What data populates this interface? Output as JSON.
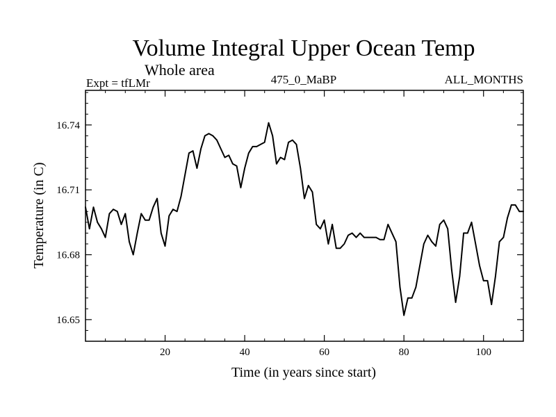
{
  "chart_data": {
    "type": "line",
    "title": "Volume Integral Upper Ocean Temp",
    "subtitle": "Whole area",
    "experiment_label": "Expt = tfLMr",
    "run_label": "475_0_MaBP",
    "season_label": "ALL_MONTHS",
    "xlabel": "Time (in years since start)",
    "ylabel": "Temperature (in C)",
    "xlim": [
      0,
      110
    ],
    "ylim": [
      16.64,
      16.756
    ],
    "xticks": [
      20,
      40,
      60,
      80,
      100
    ],
    "yticks": [
      16.65,
      16.68,
      16.71,
      16.74
    ],
    "xtick_labels": [
      "20",
      "40",
      "60",
      "80",
      "100"
    ],
    "ytick_labels": [
      "16.65",
      "16.68",
      "16.71",
      "16.74"
    ],
    "line_color": "#000000",
    "series": [
      {
        "name": "Volume Integral Upper Ocean Temp",
        "x": [
          0,
          1,
          2,
          3,
          4,
          5,
          6,
          7,
          8,
          9,
          10,
          11,
          12,
          13,
          14,
          15,
          16,
          17,
          18,
          19,
          20,
          21,
          22,
          23,
          24,
          25,
          26,
          27,
          28,
          29,
          30,
          31,
          32,
          33,
          34,
          35,
          36,
          37,
          38,
          39,
          40,
          41,
          42,
          43,
          44,
          45,
          46,
          47,
          48,
          49,
          50,
          51,
          52,
          53,
          54,
          55,
          56,
          57,
          58,
          59,
          60,
          61,
          62,
          63,
          64,
          65,
          66,
          67,
          68,
          69,
          70,
          71,
          72,
          73,
          74,
          75,
          76,
          77,
          78,
          79,
          80,
          81,
          82,
          83,
          84,
          85,
          86,
          87,
          88,
          89,
          90,
          91,
          92,
          93,
          94,
          95,
          96,
          97,
          98,
          99,
          100,
          101,
          102,
          103,
          104,
          105,
          106,
          107,
          108,
          109,
          110
        ],
        "values": [
          16.702,
          16.692,
          16.702,
          16.695,
          16.692,
          16.688,
          16.699,
          16.701,
          16.7,
          16.694,
          16.699,
          16.686,
          16.68,
          16.69,
          16.699,
          16.696,
          16.696,
          16.702,
          16.706,
          16.69,
          16.684,
          16.698,
          16.701,
          16.7,
          16.707,
          16.717,
          16.727,
          16.728,
          16.72,
          16.729,
          16.735,
          16.736,
          16.735,
          16.733,
          16.729,
          16.725,
          16.726,
          16.722,
          16.721,
          16.711,
          16.72,
          16.727,
          16.73,
          16.73,
          16.731,
          16.732,
          16.741,
          16.735,
          16.722,
          16.725,
          16.724,
          16.732,
          16.733,
          16.731,
          16.72,
          16.706,
          16.712,
          16.709,
          16.694,
          16.692,
          16.696,
          16.685,
          16.694,
          16.683,
          16.683,
          16.685,
          16.689,
          16.69,
          16.688,
          16.69,
          16.688,
          16.688,
          16.688,
          16.688,
          16.687,
          16.687,
          16.694,
          16.69,
          16.686,
          16.665,
          16.652,
          16.66,
          16.66,
          16.665,
          16.675,
          16.685,
          16.689,
          16.686,
          16.684,
          16.694,
          16.696,
          16.692,
          16.673,
          16.658,
          16.67,
          16.69,
          16.69,
          16.695,
          16.685,
          16.675,
          16.668,
          16.668,
          16.657,
          16.67,
          16.686,
          16.688,
          16.697,
          16.703,
          16.703,
          16.7,
          16.7
        ]
      }
    ]
  }
}
